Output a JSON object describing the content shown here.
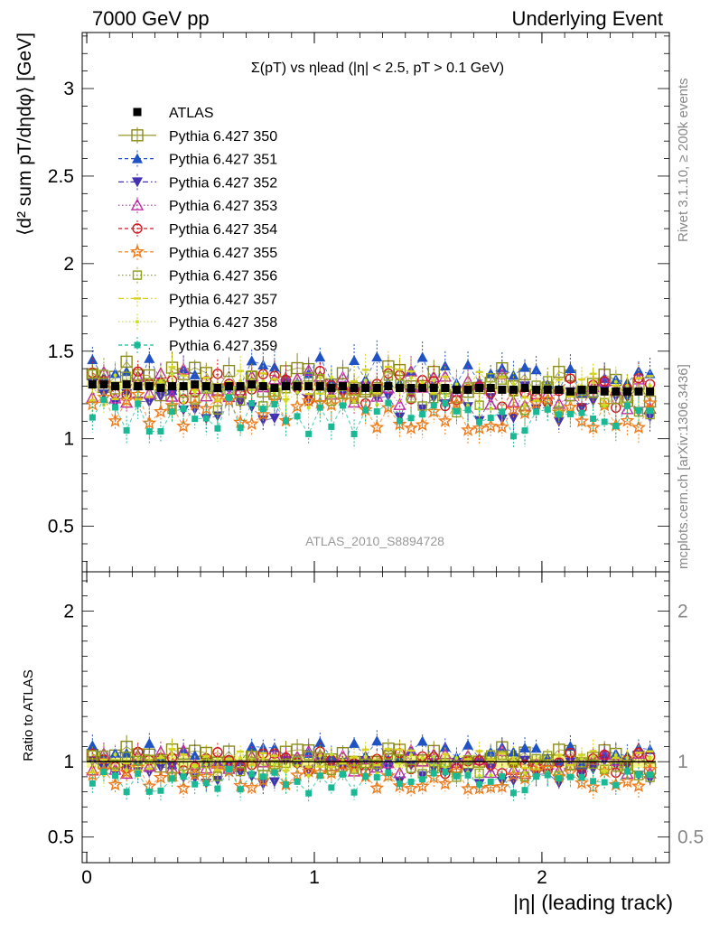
{
  "header": {
    "left": "7000 GeV pp",
    "right": "Underlying Event"
  },
  "side_labels": {
    "rivet": "Rivet 3.1.10, ≥ 200k events",
    "mcplots": "mcplots.cern.ch [arXiv:1306.3436]"
  },
  "chart_data": {
    "type": "scatter",
    "title": "Σ(pT) vs ηlead (|η| < 2.5, pT > 0.1 GeV)",
    "watermark": "ATLAS_2010_S8894728",
    "xlabel": "|η| (leading track)",
    "ylabel": "⟨d² sum pT/dηdφ⟩ [GeV]",
    "ratio_ylabel": "Ratio to ATLAS",
    "xlim": [
      -0.02,
      2.56
    ],
    "ylim": [
      0.24,
      3.32
    ],
    "ratio_ylim": [
      0.33,
      2.26
    ],
    "x_ticks": [
      0,
      1,
      2
    ],
    "y_ticks": [
      0.5,
      1,
      1.5,
      2,
      2.5,
      3
    ],
    "ratio_y_ticks": [
      0.5,
      1,
      2
    ],
    "x_bins": 50,
    "x_max": 2.5,
    "data_values": [
      1.31,
      1.31,
      1.3,
      1.31,
      1.3,
      1.3,
      1.29,
      1.3,
      1.3,
      1.31,
      1.3,
      1.29,
      1.3,
      1.3,
      1.31,
      1.3,
      1.29,
      1.3,
      1.3,
      1.3,
      1.3,
      1.29,
      1.3,
      1.29,
      1.29,
      1.29,
      1.3,
      1.29,
      1.29,
      1.29,
      1.29,
      1.29,
      1.28,
      1.28,
      1.29,
      1.29,
      1.28,
      1.28,
      1.29,
      1.28,
      1.28,
      1.28,
      1.27,
      1.28,
      1.28,
      1.27,
      1.27,
      1.27,
      1.27,
      1.27
    ],
    "series": [
      {
        "name": "ATLAS",
        "color": "#000000",
        "marker": "square-filled",
        "line": "solid"
      },
      {
        "name": "Pythia 6.427 350",
        "color": "#8b8b1a",
        "marker": "square-open",
        "line": "solid",
        "mean_ratio": 1.02
      },
      {
        "name": "Pythia 6.427 351",
        "color": "#1f52c4",
        "marker": "triangle-up-filled",
        "line": "dashed",
        "mean_ratio": 1.06
      },
      {
        "name": "Pythia 6.427 352",
        "color": "#4432b0",
        "marker": "triangle-down-filled",
        "line": "dashdot",
        "mean_ratio": 0.93
      },
      {
        "name": "Pythia 6.427 353",
        "color": "#c02ca3",
        "marker": "triangle-up-open",
        "line": "dotted",
        "mean_ratio": 1.0
      },
      {
        "name": "Pythia 6.427 354",
        "color": "#d0161e",
        "marker": "circle-open",
        "line": "dashed",
        "mean_ratio": 0.99
      },
      {
        "name": "Pythia 6.427 355",
        "color": "#f07a18",
        "marker": "star-open",
        "line": "dashed",
        "mean_ratio": 0.9
      },
      {
        "name": "Pythia 6.427 356",
        "color": "#8fa01e",
        "marker": "square-open-small",
        "line": "dotted",
        "mean_ratio": 0.97
      },
      {
        "name": "Pythia 6.427 357",
        "color": "#d6d21e",
        "marker": "dash",
        "line": "dashdot",
        "mean_ratio": 1.01
      },
      {
        "name": "Pythia 6.427 358",
        "color": "#c8e020",
        "marker": "dot",
        "line": "dotted",
        "mean_ratio": 0.98
      },
      {
        "name": "Pythia 6.427 359",
        "color": "#1ab894",
        "marker": "square-filled-small",
        "line": "dashed",
        "mean_ratio": 0.87
      }
    ]
  }
}
